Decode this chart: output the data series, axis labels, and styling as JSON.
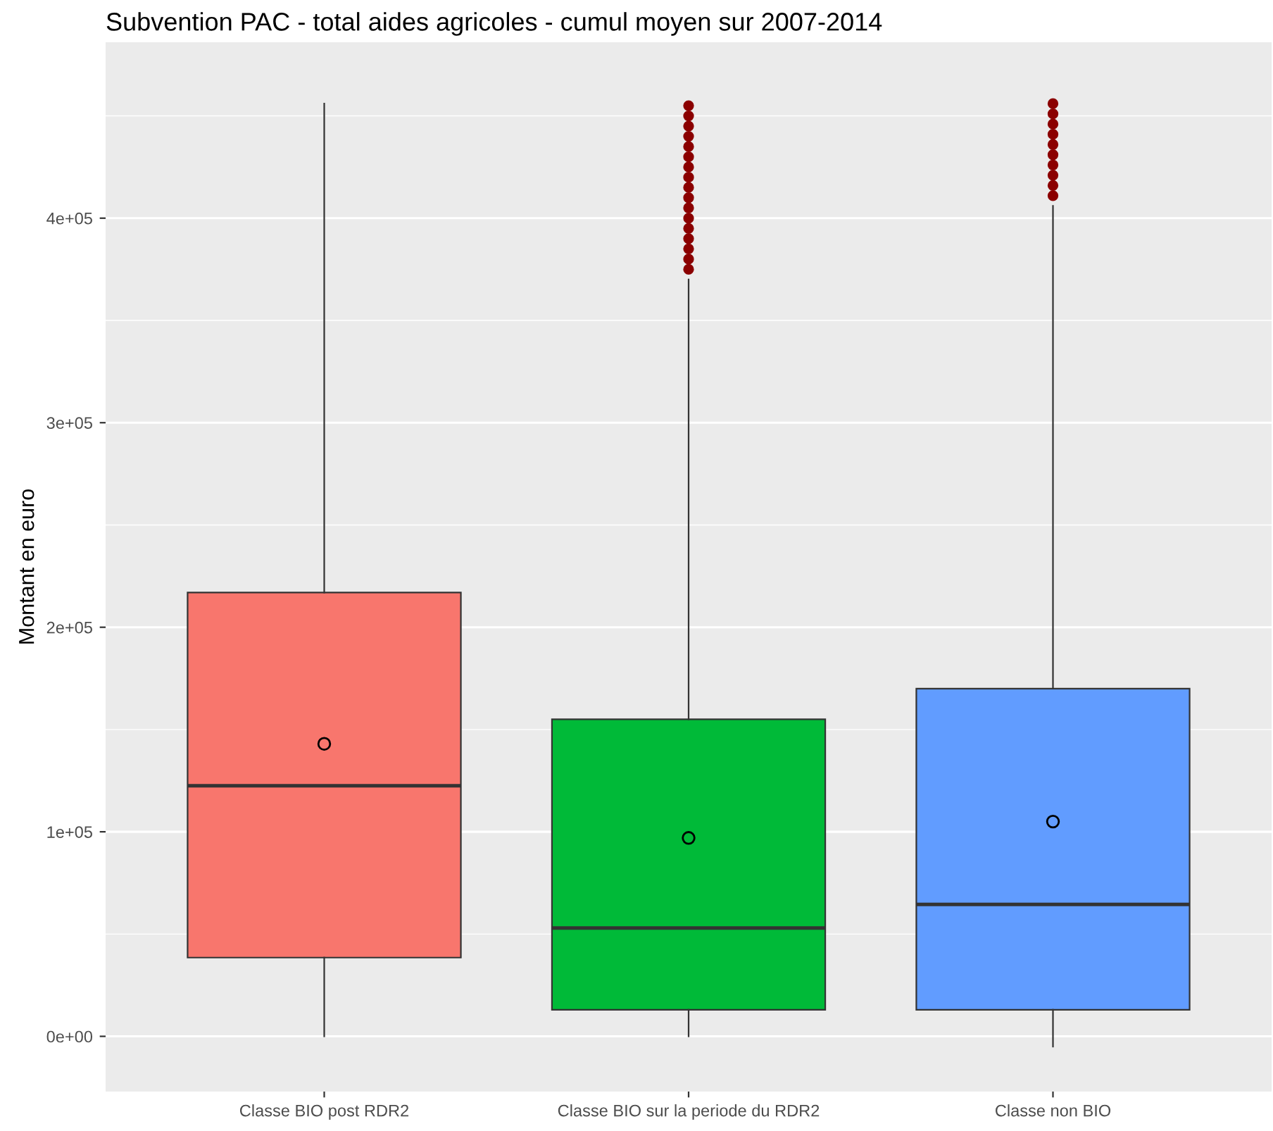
{
  "chart_data": {
    "type": "box",
    "title": "Subvention PAC - total aides agricoles - cumul moyen sur 2007-2014",
    "ylabel": "Montant en euro",
    "categories": [
      "Classe BIO post RDR2",
      "Classe BIO sur la periode du RDR2",
      "Classe non BIO"
    ],
    "colors": [
      "#f8766d",
      "#00ba38",
      "#619cff"
    ],
    "boxes": [
      {
        "low": 0,
        "q1": 38500,
        "median": 122500,
        "q3": 217000,
        "high": 456000,
        "mean": 143000
      },
      {
        "low": 0,
        "q1": 13000,
        "median": 53000,
        "q3": 155000,
        "high": 370000,
        "mean": 97000,
        "outliers": [
          375000,
          380000,
          385000,
          390000,
          395000,
          400000,
          405000,
          410000,
          415000,
          420000,
          425000,
          430000,
          435000,
          440000,
          445000,
          450000,
          455000
        ]
      },
      {
        "low": -5000,
        "q1": 13000,
        "median": 64500,
        "q3": 170000,
        "high": 406000,
        "mean": 105000,
        "outliers": [
          411000,
          416000,
          421000,
          426000,
          431000,
          436000,
          441000,
          446000,
          451000,
          456000
        ]
      }
    ],
    "ylim": [
      -27000,
      486000
    ],
    "yticks": [
      {
        "value": 0,
        "label": "0e+00"
      },
      {
        "value": 100000,
        "label": "1e+05"
      },
      {
        "value": 200000,
        "label": "2e+05"
      },
      {
        "value": 300000,
        "label": "3e+05"
      },
      {
        "value": 400000,
        "label": "4e+05"
      }
    ],
    "grid": "y"
  }
}
